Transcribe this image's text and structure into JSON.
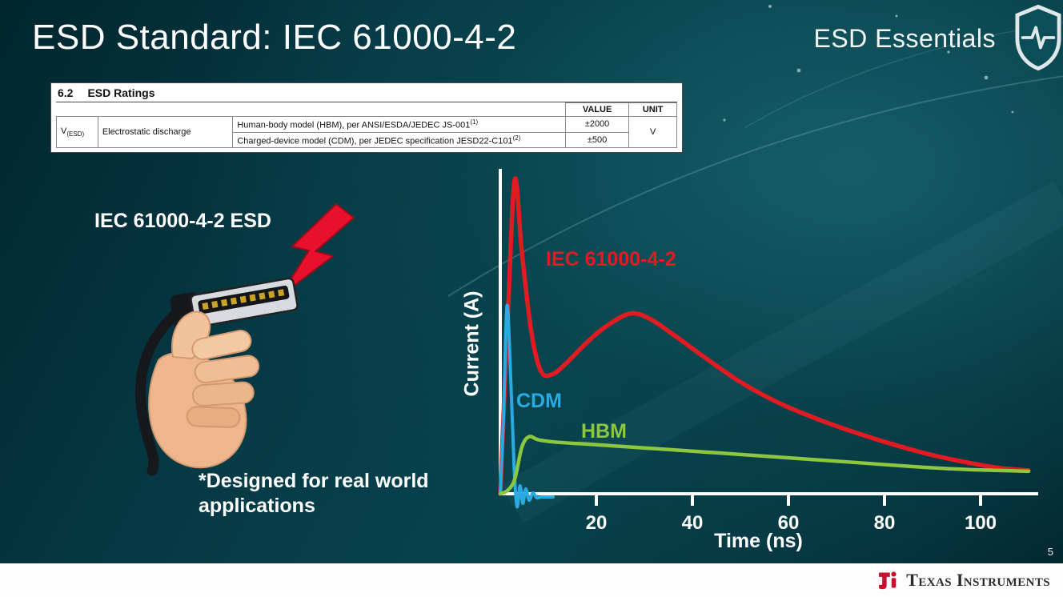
{
  "slide": {
    "title": "ESD Standard: IEC 61000-4-2",
    "series_brand": "ESD Essentials",
    "page_number": "5"
  },
  "ratings_table": {
    "section": "6.2",
    "section_title": "ESD Ratings",
    "col_value": "VALUE",
    "col_unit": "UNIT",
    "param_symbol": "V",
    "param_sub": "(ESD)",
    "param_name": "Electrostatic discharge",
    "rows": [
      {
        "description": "Human-body model (HBM), per ANSI/ESDA/JEDEC JS-001",
        "sup": "(1)",
        "value": "±2000"
      },
      {
        "description": "Charged-device model (CDM), per JEDEC specification JESD22-C101",
        "sup": "(2)",
        "value": "±500"
      }
    ],
    "unit": "V"
  },
  "illustration": {
    "caption": "IEC 61000-4-2 ESD",
    "note_line1": "*Designed for real world",
    "note_line2": "applications"
  },
  "chart_data": {
    "type": "line",
    "title": "",
    "xlabel": "Time (ns)",
    "ylabel": "Current (A)",
    "xlim": [
      0,
      112
    ],
    "ylim": [
      -2,
      40
    ],
    "xticks": [
      20,
      40,
      60,
      80,
      100
    ],
    "grid": false,
    "legend_position": "inline-labels",
    "axis_color": "#ffffff",
    "series": [
      {
        "name": "IEC 61000-4-2",
        "color": "#e11b22",
        "stroke_width": 5.5,
        "points": [
          [
            0,
            0
          ],
          [
            1.5,
            21
          ],
          [
            3,
            39
          ],
          [
            4.5,
            30
          ],
          [
            6.5,
            20
          ],
          [
            8.5,
            15.2
          ],
          [
            11,
            14.9
          ],
          [
            14,
            16.4
          ],
          [
            18,
            18.8
          ],
          [
            22,
            20.8
          ],
          [
            27,
            22.4
          ],
          [
            31,
            21.8
          ],
          [
            36,
            19.8
          ],
          [
            42,
            17.2
          ],
          [
            50,
            13.9
          ],
          [
            58,
            11.3
          ],
          [
            66,
            9.3
          ],
          [
            74,
            7.6
          ],
          [
            82,
            6.1
          ],
          [
            90,
            4.8
          ],
          [
            98,
            3.8
          ],
          [
            104,
            3.2
          ],
          [
            110,
            2.9
          ]
        ]
      },
      {
        "name": "CDM",
        "color": "#29abe2",
        "stroke_width": 4,
        "points": [
          [
            0,
            0
          ],
          [
            0.7,
            10
          ],
          [
            1.4,
            23.4
          ],
          [
            2.2,
            14
          ],
          [
            2.9,
            3
          ],
          [
            3.5,
            -1.6
          ],
          [
            4.1,
            1.0
          ],
          [
            4.7,
            -1.2
          ],
          [
            5.3,
            0.6
          ],
          [
            6.0,
            -0.8
          ],
          [
            6.8,
            0.1
          ],
          [
            7.6,
            -0.5
          ],
          [
            8.6,
            -0.4
          ],
          [
            11,
            -0.4
          ]
        ]
      },
      {
        "name": "HBM",
        "color": "#8dc63f",
        "stroke_width": 4.5,
        "points": [
          [
            0,
            0
          ],
          [
            1.5,
            0.4
          ],
          [
            3,
            1.8
          ],
          [
            4.5,
            5.8
          ],
          [
            6,
            7.1
          ],
          [
            8,
            6.7
          ],
          [
            12,
            6.4
          ],
          [
            20,
            6.1
          ],
          [
            30,
            5.7
          ],
          [
            40,
            5.3
          ],
          [
            52,
            4.8
          ],
          [
            64,
            4.3
          ],
          [
            76,
            3.8
          ],
          [
            88,
            3.3
          ],
          [
            98,
            3.0
          ],
          [
            110,
            2.8
          ]
        ]
      }
    ]
  },
  "footer": {
    "brand": "Texas Instruments"
  }
}
